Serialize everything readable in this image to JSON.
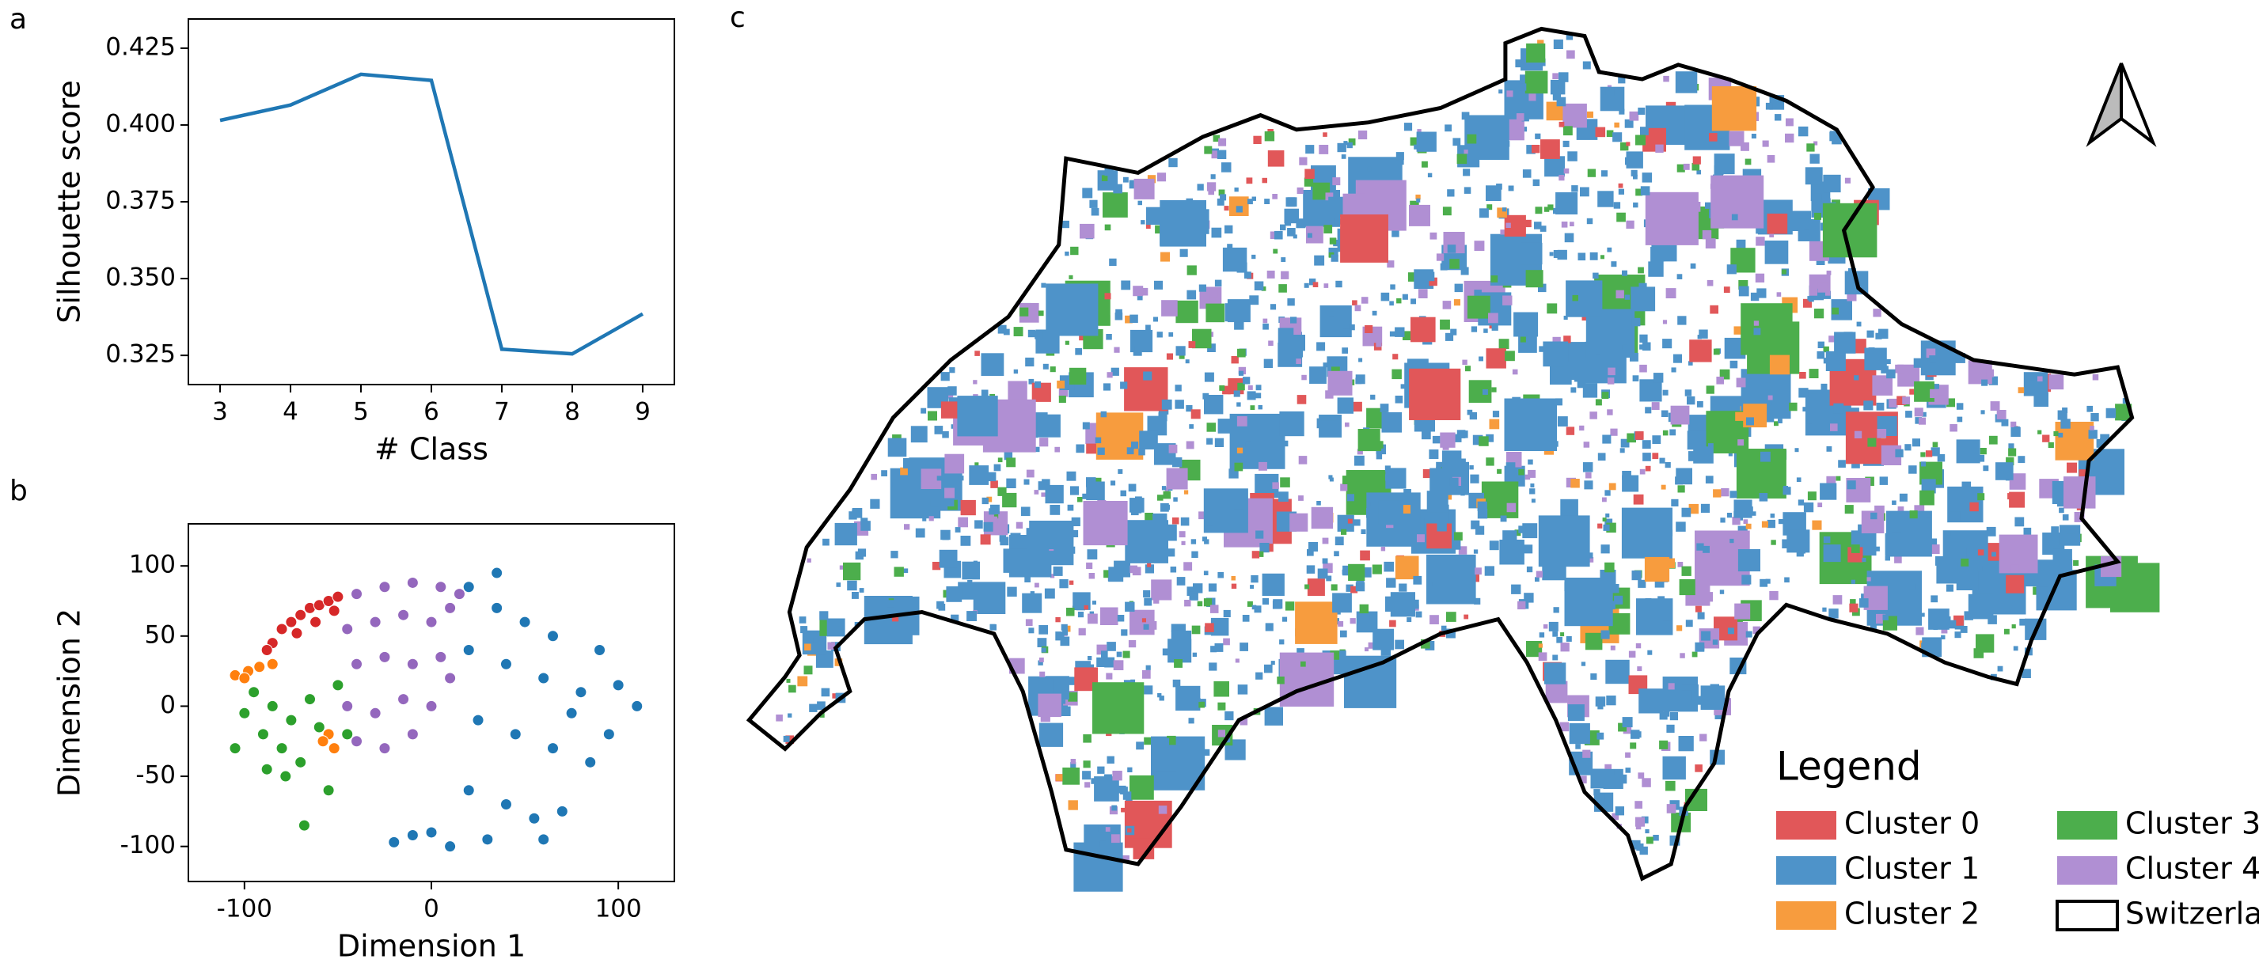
{
  "chart_data": [
    {
      "type": "line",
      "panel_label": "a",
      "xlabel": "# Class",
      "ylabel": "Silhouette score",
      "color": "#1f77b4",
      "x": [
        3,
        4,
        5,
        6,
        7,
        8,
        9
      ],
      "values": [
        0.4015,
        0.4065,
        0.4165,
        0.4145,
        0.327,
        0.3255,
        0.3385
      ],
      "xlim": [
        2.55,
        9.45
      ],
      "xticks": [
        3,
        4,
        5,
        6,
        7,
        8,
        9
      ],
      "ylim": [
        0.3155,
        0.4345
      ],
      "yticks": [
        0.325,
        {
          "value": 0.35,
          "label": "0.350"
        },
        0.375,
        {
          "value": 0.4,
          "label": "0.400"
        },
        0.425
      ]
    },
    {
      "type": "scatter",
      "panel_label": "b",
      "xlabel": "Dimension 1",
      "ylabel": "Dimension 2",
      "xlim": [
        -130,
        130
      ],
      "xticks": [
        -100,
        0,
        100
      ],
      "ylim": [
        -125,
        130
      ],
      "yticks": [
        -100,
        -50,
        0,
        50,
        100
      ],
      "series": [
        {
          "color": "#d62728",
          "x": [
            -85,
            -80,
            -75,
            -70,
            -65,
            -60,
            -55,
            -50,
            -72,
            -62,
            -88,
            -52
          ],
          "values": [
            45,
            55,
            60,
            65,
            70,
            72,
            75,
            78,
            52,
            60,
            40,
            68
          ]
        },
        {
          "color": "#1f77b4",
          "x": [
            20,
            35,
            50,
            65,
            20,
            40,
            60,
            80,
            25,
            45,
            65,
            85,
            20,
            40,
            55,
            30,
            -20,
            -10,
            0,
            10,
            60,
            70,
            95,
            100,
            110,
            90,
            35,
            75
          ],
          "values": [
            85,
            70,
            60,
            50,
            40,
            30,
            20,
            10,
            -10,
            -20,
            -30,
            -40,
            -60,
            -70,
            -80,
            -95,
            -97,
            -92,
            -90,
            -100,
            -95,
            -75,
            -20,
            15,
            0,
            40,
            95,
            -5
          ]
        },
        {
          "color": "#ff7f0e",
          "x": [
            -105,
            -98,
            -92,
            -85,
            -100,
            -55,
            -58,
            -52
          ],
          "values": [
            22,
            25,
            28,
            30,
            20,
            -20,
            -25,
            -30
          ]
        },
        {
          "color": "#2ca02c",
          "x": [
            -95,
            -85,
            -75,
            -90,
            -80,
            -70,
            -100,
            -65,
            -60,
            -50,
            -105,
            -78,
            -55,
            -45,
            -88,
            -68
          ],
          "values": [
            10,
            0,
            -10,
            -20,
            -30,
            -40,
            -5,
            5,
            -15,
            15,
            -30,
            -50,
            -60,
            -20,
            -45,
            -85
          ]
        },
        {
          "color": "#9467bd",
          "x": [
            -40,
            -25,
            -10,
            5,
            -45,
            -30,
            -15,
            0,
            10,
            -40,
            -25,
            -10,
            5,
            -45,
            -30,
            -15,
            0,
            -40,
            -25,
            -10,
            15,
            10
          ],
          "values": [
            80,
            85,
            88,
            85,
            55,
            60,
            65,
            60,
            70,
            30,
            35,
            30,
            35,
            0,
            -5,
            5,
            0,
            -25,
            -30,
            -20,
            80,
            20
          ]
        }
      ]
    },
    {
      "type": "map",
      "panel_label": "c",
      "legend": {
        "title": "Legend",
        "items": [
          {
            "name": "Cluster 0",
            "color": "#e15759"
          },
          {
            "name": "Cluster 1",
            "color": "#4e93c9"
          },
          {
            "name": "Cluster 2",
            "color": "#f79c3e"
          },
          {
            "name": "Cluster 3",
            "color": "#4cae4c"
          },
          {
            "name": "Cluster 4",
            "color": "#b08fd3"
          },
          {
            "name": "Switzerland",
            "color": "#ffffff",
            "edgecolor": "#000000"
          }
        ]
      }
    }
  ]
}
